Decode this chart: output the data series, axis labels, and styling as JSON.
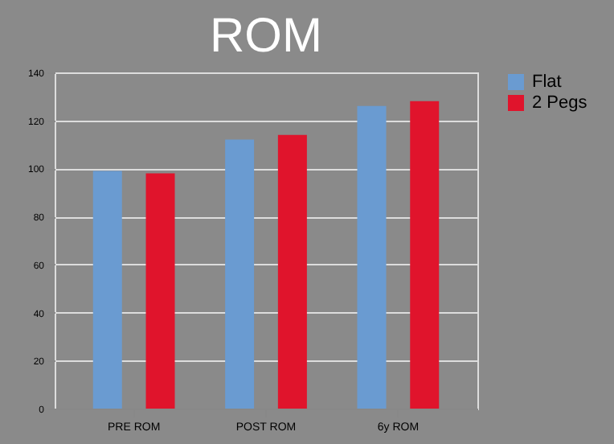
{
  "chart_data": {
    "type": "bar",
    "title": "ROM",
    "categories": [
      "PRE ROM",
      "POST ROM",
      "6y ROM"
    ],
    "series": [
      {
        "name": "Flat",
        "color": "#6a9bd1",
        "values": [
          99,
          112,
          126
        ]
      },
      {
        "name": "2 Pegs",
        "color": "#e0142c",
        "values": [
          98,
          114,
          128
        ]
      }
    ],
    "ylim": [
      0,
      140
    ],
    "yticks": [
      0,
      20,
      40,
      60,
      80,
      100,
      120,
      140
    ],
    "grid": "y",
    "legend": "right"
  }
}
